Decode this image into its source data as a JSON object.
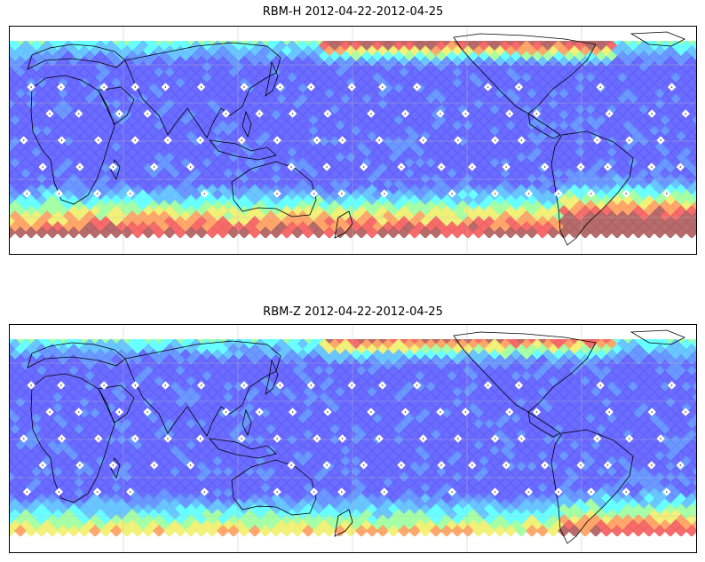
{
  "panels": [
    {
      "title": "RBM-H 2012-04-22-2012-04-25",
      "colormap": "jet-alpha",
      "band_colors": [
        "#b06060",
        "#f46060",
        "#ffa060",
        "#f0f070",
        "#a0ffa0",
        "#60ffff",
        "#5fc0ff",
        "#5f8fff",
        "#6060ff"
      ]
    },
    {
      "title": "RBM-Z 2012-04-22-2012-04-25",
      "colormap": "jet-alpha",
      "band_colors": [
        "#b06060",
        "#f46060",
        "#ffa060",
        "#f0f070",
        "#a0ffa0",
        "#60ffff",
        "#5fc0ff",
        "#5f8fff",
        "#6060ff"
      ]
    }
  ]
}
